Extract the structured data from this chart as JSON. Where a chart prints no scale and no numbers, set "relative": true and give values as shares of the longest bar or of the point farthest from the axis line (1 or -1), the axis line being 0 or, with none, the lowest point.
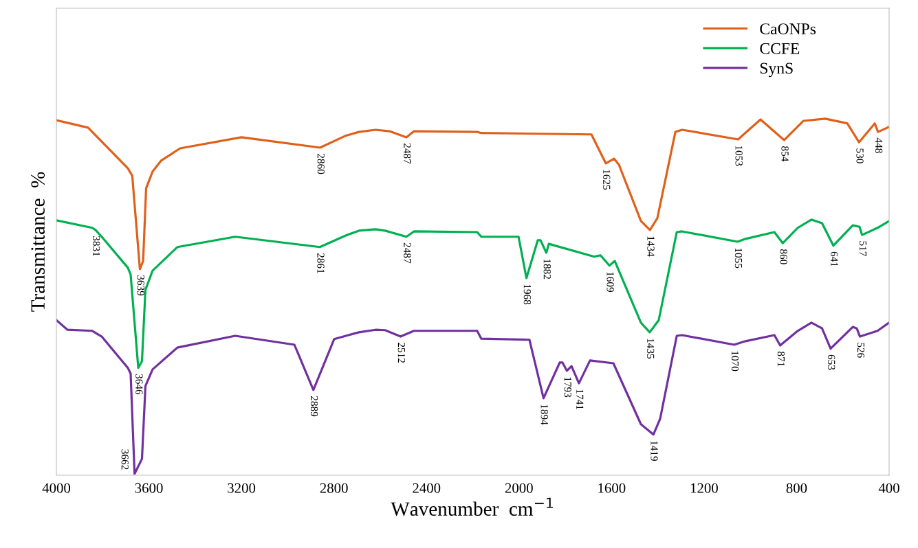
{
  "chart_data": {
    "type": "line",
    "xlabel": "Wavenumber  cm$^{−1}$",
    "ylabel": "Transmittance  %",
    "relative": true,
    "tick_labels": "x",
    "grid": false,
    "legend": "top right",
    "marker": "none",
    "line_style": "solid",
    "xlim": [
      4000,
      400
    ],
    "xticks": [
      4000,
      3600,
      3200,
      2800,
      2400,
      2000,
      1600,
      1200,
      800,
      400
    ],
    "series": [
      {
        "name": "CaONPs",
        "color": "#e0601a",
        "x": [
          4000,
          3863,
          3691,
          3672,
          3639,
          3625,
          3612,
          3584,
          3548,
          3465,
          3200,
          2860,
          2751,
          2692,
          2620,
          2560,
          2487,
          2454,
          2181,
          2163,
          1687,
          1625,
          1589,
          1568,
          1473,
          1434,
          1402,
          1324,
          1295,
          1053,
          956,
          854,
          771,
          676,
          581,
          530,
          462,
          448,
          400
        ],
        "values": [
          0.996,
          0.975,
          0.861,
          0.84,
          0.578,
          0.601,
          0.805,
          0.852,
          0.882,
          0.917,
          0.948,
          0.919,
          0.952,
          0.963,
          0.969,
          0.965,
          0.948,
          0.965,
          0.963,
          0.96,
          0.956,
          0.875,
          0.888,
          0.871,
          0.713,
          0.688,
          0.721,
          0.963,
          0.969,
          0.942,
          0.998,
          0.94,
          0.994,
          1.0,
          0.987,
          0.934,
          0.987,
          0.963,
          0.977
        ]
      },
      {
        "name": "CCFE",
        "color": "#00b050",
        "x": [
          4000,
          3845,
          3831,
          3804,
          3691,
          3679,
          3646,
          3630,
          3615,
          3584,
          3477,
          3227,
          2861,
          2751,
          2692,
          2620,
          2579,
          2487,
          2454,
          2181,
          2163,
          2002,
          1968,
          1919,
          1907,
          1882,
          1871,
          1675,
          1648,
          1609,
          1586,
          1473,
          1435,
          1396,
          1318,
          1295,
          1055,
          1021,
          896,
          860,
          795,
          736,
          690,
          641,
          557,
          528,
          517,
          450,
          400
        ],
        "values": [
          0.715,
          0.694,
          0.688,
          0.669,
          0.582,
          0.563,
          0.301,
          0.32,
          0.52,
          0.574,
          0.64,
          0.669,
          0.64,
          0.672,
          0.686,
          0.69,
          0.686,
          0.669,
          0.684,
          0.682,
          0.669,
          0.669,
          0.553,
          0.659,
          0.659,
          0.624,
          0.649,
          0.613,
          0.617,
          0.588,
          0.601,
          0.428,
          0.401,
          0.435,
          0.682,
          0.684,
          0.655,
          0.663,
          0.682,
          0.651,
          0.694,
          0.717,
          0.707,
          0.644,
          0.701,
          0.697,
          0.674,
          0.694,
          0.713
        ]
      },
      {
        "name": "SynS",
        "color": "#7030a0",
        "x": [
          4000,
          3952,
          3845,
          3804,
          3691,
          3679,
          3662,
          3630,
          3615,
          3584,
          3477,
          3227,
          2971,
          2889,
          2799,
          2692,
          2620,
          2579,
          2512,
          2454,
          2181,
          2163,
          1955,
          1894,
          1824,
          1812,
          1793,
          1773,
          1741,
          1693,
          1592,
          1473,
          1419,
          1390,
          1318,
          1295,
          1070,
          1021,
          896,
          871,
          795,
          736,
          690,
          653,
          557,
          540,
          526,
          450,
          400
        ],
        "values": [
          0.435,
          0.408,
          0.405,
          0.389,
          0.301,
          0.285,
          0.004,
          0.046,
          0.25,
          0.297,
          0.358,
          0.391,
          0.366,
          0.239,
          0.382,
          0.401,
          0.408,
          0.407,
          0.389,
          0.405,
          0.405,
          0.383,
          0.38,
          0.216,
          0.316,
          0.316,
          0.293,
          0.306,
          0.258,
          0.322,
          0.314,
          0.143,
          0.114,
          0.158,
          0.391,
          0.393,
          0.366,
          0.376,
          0.393,
          0.364,
          0.405,
          0.428,
          0.412,
          0.355,
          0.416,
          0.412,
          0.389,
          0.405,
          0.428
        ]
      }
    ],
    "annotations": [
      {
        "text": "2860",
        "x": 2860,
        "y": 0.919
      },
      {
        "text": "2487",
        "x": 2487,
        "y": 0.948
      },
      {
        "text": "1625",
        "x": 1625,
        "y": 0.875
      },
      {
        "text": "1434",
        "x": 1434,
        "y": 0.688
      },
      {
        "text": "1053",
        "x": 1053,
        "y": 0.942
      },
      {
        "text": "854",
        "x": 854,
        "y": 0.94
      },
      {
        "text": "530",
        "x": 530,
        "y": 0.934
      },
      {
        "text": "448",
        "x": 448,
        "y": 0.963
      },
      {
        "text": "3639",
        "x": 3639,
        "y": 0.578
      },
      {
        "text": "3831",
        "x": 3831,
        "y": 0.688
      },
      {
        "text": "2861",
        "x": 2861,
        "y": 0.64
      },
      {
        "text": "2487",
        "x": 2487,
        "y": 0.669
      },
      {
        "text": "1968",
        "x": 1968,
        "y": 0.553
      },
      {
        "text": "1882",
        "x": 1882,
        "y": 0.624
      },
      {
        "text": "1609",
        "x": 1609,
        "y": 0.588
      },
      {
        "text": "1435",
        "x": 1435,
        "y": 0.401
      },
      {
        "text": "1055",
        "x": 1055,
        "y": 0.655
      },
      {
        "text": "860",
        "x": 860,
        "y": 0.651
      },
      {
        "text": "641",
        "x": 641,
        "y": 0.644
      },
      {
        "text": "517",
        "x": 517,
        "y": 0.674
      },
      {
        "text": "3646",
        "x": 3646,
        "y": 0.301
      },
      {
        "text": "3662",
        "x": 3662,
        "y": 0.004
      },
      {
        "text": "2889",
        "x": 2889,
        "y": 0.239
      },
      {
        "text": "2512",
        "x": 2512,
        "y": 0.389
      },
      {
        "text": "1894",
        "x": 1894,
        "y": 0.216
      },
      {
        "text": "1793",
        "x": 1793,
        "y": 0.293
      },
      {
        "text": "1741",
        "x": 1741,
        "y": 0.258
      },
      {
        "text": "1419",
        "x": 1419,
        "y": 0.114
      },
      {
        "text": "1070",
        "x": 1070,
        "y": 0.366
      },
      {
        "text": "871",
        "x": 871,
        "y": 0.364
      },
      {
        "text": "653",
        "x": 653,
        "y": 0.355
      },
      {
        "text": "526",
        "x": 526,
        "y": 0.389
      }
    ]
  }
}
